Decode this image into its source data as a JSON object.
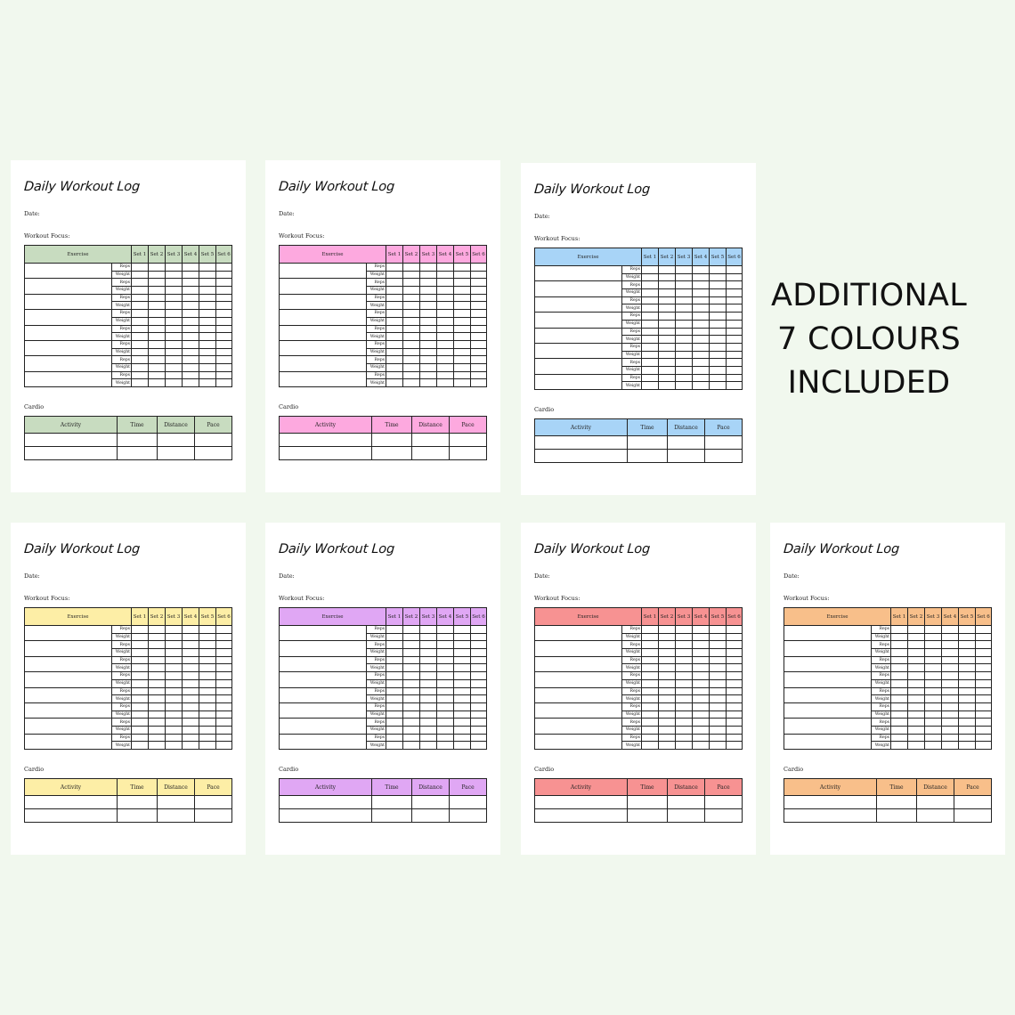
{
  "headline": [
    "ADDITIONAL",
    "7 COLOURS",
    "INCLUDED"
  ],
  "page_labels": {
    "title": "Daily Workout Log",
    "date": "Date:",
    "focus": "Workout Focus:",
    "cardio": "Cardio"
  },
  "exercise_headers": [
    "Exercise",
    "Set 1",
    "Set 2",
    "Set 3",
    "Set 4",
    "Set 5",
    "Set 6"
  ],
  "row_labels": [
    "Reps",
    "Weight"
  ],
  "exercise_count": 8,
  "cardio_headers": [
    "Activity",
    "Time",
    "Distance",
    "Pace"
  ],
  "cardio_rows": 2,
  "pages": [
    {
      "name": "green",
      "color": "#c8dcc0"
    },
    {
      "name": "pink",
      "color": "#fda9df"
    },
    {
      "name": "blue",
      "color": "#a8d4f7"
    },
    {
      "name": "yellow",
      "color": "#fdeea6"
    },
    {
      "name": "purple",
      "color": "#e0a7f4"
    },
    {
      "name": "red",
      "color": "#f79292"
    },
    {
      "name": "orange",
      "color": "#f8bf8a"
    }
  ]
}
